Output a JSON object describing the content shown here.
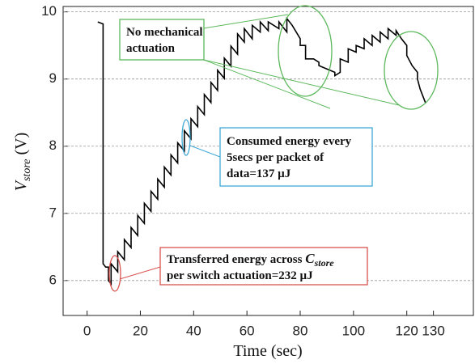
{
  "chart_data": {
    "type": "line",
    "xlabel": "Time (sec)",
    "ylabel": {
      "symbol": "V",
      "subscript": "store",
      "unit": " (V)"
    },
    "xlim": [
      -9,
      145
    ],
    "ylim": [
      5.48,
      10.08
    ],
    "xticks": [
      0,
      20,
      40,
      60,
      80,
      100,
      120,
      130
    ],
    "yticks": [
      6,
      7,
      8,
      9,
      10
    ],
    "grid": true,
    "series": [
      {
        "color": "#000000",
        "x": [
          4,
          6,
          6,
          7,
          8,
          8,
          9,
          9,
          11.5,
          11.5,
          14,
          14,
          16.5,
          16.5,
          19,
          19,
          21.5,
          21.5,
          24,
          24,
          26.5,
          26.5,
          29,
          29,
          31.5,
          31.5,
          34,
          34,
          36.5,
          36.5,
          39,
          39,
          41.5,
          41.5,
          44,
          44,
          46.5,
          46.5,
          49,
          49,
          51.5,
          51.5,
          54,
          54,
          56.5,
          56.5,
          59,
          59,
          62,
          62,
          65,
          65,
          68,
          68,
          72,
          72,
          75,
          75,
          77,
          80,
          80,
          82,
          82,
          85,
          87,
          87,
          90,
          93,
          93,
          95,
          95,
          98,
          98,
          101,
          101,
          104,
          104,
          107,
          107,
          110,
          110,
          113,
          113,
          116,
          116,
          118,
          120,
          120,
          122,
          124,
          124,
          125,
          127
        ],
        "values": [
          9.85,
          9.82,
          6.25,
          6.2,
          6.2,
          6.0,
          5.95,
          6.25,
          6.13,
          6.43,
          6.31,
          6.61,
          6.49,
          6.79,
          6.67,
          6.97,
          6.85,
          7.15,
          7.03,
          7.33,
          7.21,
          7.51,
          7.39,
          7.69,
          7.57,
          7.87,
          7.75,
          8.05,
          7.93,
          8.23,
          8.11,
          8.41,
          8.29,
          8.59,
          8.47,
          8.77,
          8.65,
          8.95,
          8.83,
          9.13,
          9.01,
          9.31,
          9.19,
          9.49,
          9.37,
          9.67,
          9.55,
          9.75,
          9.6,
          9.8,
          9.7,
          9.85,
          9.72,
          9.85,
          9.75,
          9.85,
          9.7,
          9.9,
          9.8,
          9.6,
          9.5,
          9.5,
          9.3,
          9.3,
          9.25,
          9.2,
          9.15,
          9.1,
          9.05,
          9.1,
          9.3,
          9.25,
          9.45,
          9.4,
          9.5,
          9.45,
          9.6,
          9.5,
          9.65,
          9.55,
          9.7,
          9.6,
          9.75,
          9.65,
          9.72,
          9.6,
          9.5,
          9.35,
          9.2,
          9.1,
          9.0,
          8.85,
          8.65
        ]
      }
    ],
    "annotations": [
      {
        "lines": [
          "No mechanical",
          "actuation"
        ]
      },
      {
        "lines": [
          "Consumed energy every",
          "5secs per packet of",
          "data=137 µJ"
        ]
      },
      {
        "text": "Transferred energy across ",
        "symbol": "C",
        "subscript": "store",
        "line2": "per switch actuation=232 µJ"
      }
    ]
  }
}
